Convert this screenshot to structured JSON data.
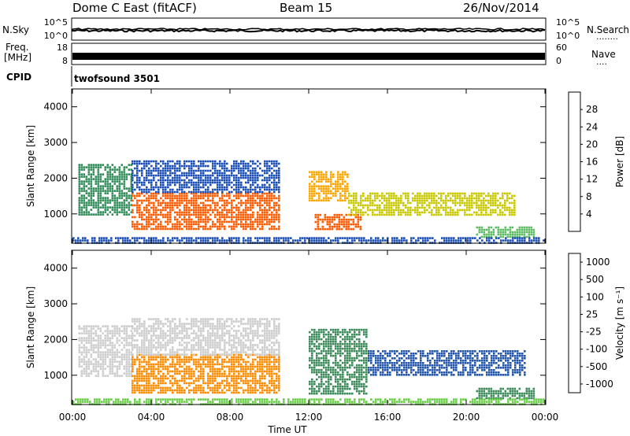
{
  "header": {
    "station": "Dome C East (fitACF)",
    "beam": "Beam 15",
    "date": "26/Nov/2014"
  },
  "side_labels": {
    "nsky": "N.Sky",
    "freq_line1": "Freq.",
    "freq_line2": "[MHz]",
    "cpid": "CPID",
    "nsearch": "N.Search",
    "nave": "Nave",
    "dots_long": "........",
    "dots_short": "...."
  },
  "noise_panel": {
    "left_ticks": [
      "10^5",
      "10^0"
    ],
    "right_ticks": [
      "10^5",
      "10^0"
    ]
  },
  "freq_panel": {
    "left_ticks": [
      "18",
      "8"
    ],
    "right_ticks": [
      "60",
      "0"
    ]
  },
  "cpid_panel": {
    "text": "twofsound 3501"
  },
  "colors": {
    "power_scale": [
      "#1a1aff",
      "#1c4fb5",
      "#2e8b57",
      "#5dbb63",
      "#c8c800",
      "#ffa500",
      "#ff5a00",
      "#ff0000"
    ],
    "velocity_scale": [
      "#ff0000",
      "#ff4500",
      "#ff8c00",
      "#ffc04d",
      "#cccccc",
      "#66cc44",
      "#3c8a5a",
      "#2255aa"
    ]
  },
  "chart_data": [
    {
      "type": "heatmap",
      "ylabel": "Slant Range [km]",
      "ylim": [
        180,
        4500
      ],
      "y_ticks": [
        "1000",
        "2000",
        "3000",
        "4000"
      ],
      "x_ticks": [
        "00:00",
        "04:00",
        "08:00",
        "12:00",
        "16:00",
        "20:00",
        "00:00"
      ],
      "colorbar_label": "Power [dB]",
      "colorbar_ticks": [
        "4",
        "8",
        "12",
        "16",
        "20",
        "24",
        "28"
      ],
      "colorbar_range": [
        0,
        32
      ],
      "regions": [
        {
          "x": [
            0.3,
            3.0
          ],
          "y": [
            1000,
            2400
          ],
          "value": 10
        },
        {
          "x": [
            3.0,
            10.5
          ],
          "y": [
            600,
            1600
          ],
          "value": 26
        },
        {
          "x": [
            3.0,
            10.5
          ],
          "y": [
            1600,
            2500
          ],
          "value": 6
        },
        {
          "x": [
            12.0,
            14.0
          ],
          "y": [
            1400,
            2200
          ],
          "value": 22
        },
        {
          "x": [
            12.3,
            14.6
          ],
          "y": [
            600,
            1000
          ],
          "value": 26
        },
        {
          "x": [
            14.0,
            22.5
          ],
          "y": [
            1000,
            1600
          ],
          "value": 16
        },
        {
          "x": [
            20.5,
            23.5
          ],
          "y": [
            350,
            650
          ],
          "value": 14
        },
        {
          "x": [
            0.0,
            24.0
          ],
          "y": [
            200,
            350
          ],
          "value": 6
        }
      ]
    },
    {
      "type": "heatmap",
      "ylabel": "Slant Range [km]",
      "xlabel": "Time UT",
      "ylim": [
        180,
        4500
      ],
      "y_ticks": [
        "1000",
        "2000",
        "3000",
        "4000"
      ],
      "x_ticks": [
        "00:00",
        "04:00",
        "08:00",
        "12:00",
        "16:00",
        "20:00",
        "00:00"
      ],
      "colorbar_label": "Velocity [m s⁻¹]",
      "colorbar_ticks": [
        "-1000",
        "-500",
        "-100",
        "-25",
        "25",
        "100",
        "500",
        "1000"
      ],
      "regions": [
        {
          "x": [
            0.3,
            3.0
          ],
          "y": [
            1000,
            2400
          ],
          "value": 0
        },
        {
          "x": [
            3.0,
            10.5
          ],
          "y": [
            500,
            1600
          ],
          "value": -300
        },
        {
          "x": [
            3.0,
            10.5
          ],
          "y": [
            1600,
            2600
          ],
          "value": 0
        },
        {
          "x": [
            12.0,
            15.0
          ],
          "y": [
            500,
            2300
          ],
          "value": 300
        },
        {
          "x": [
            15.0,
            23.0
          ],
          "y": [
            1000,
            1700
          ],
          "value": 700
        },
        {
          "x": [
            20.5,
            23.5
          ],
          "y": [
            350,
            650
          ],
          "value": 300
        },
        {
          "x": [
            0.0,
            24.0
          ],
          "y": [
            200,
            350
          ],
          "value": 60
        }
      ]
    }
  ]
}
